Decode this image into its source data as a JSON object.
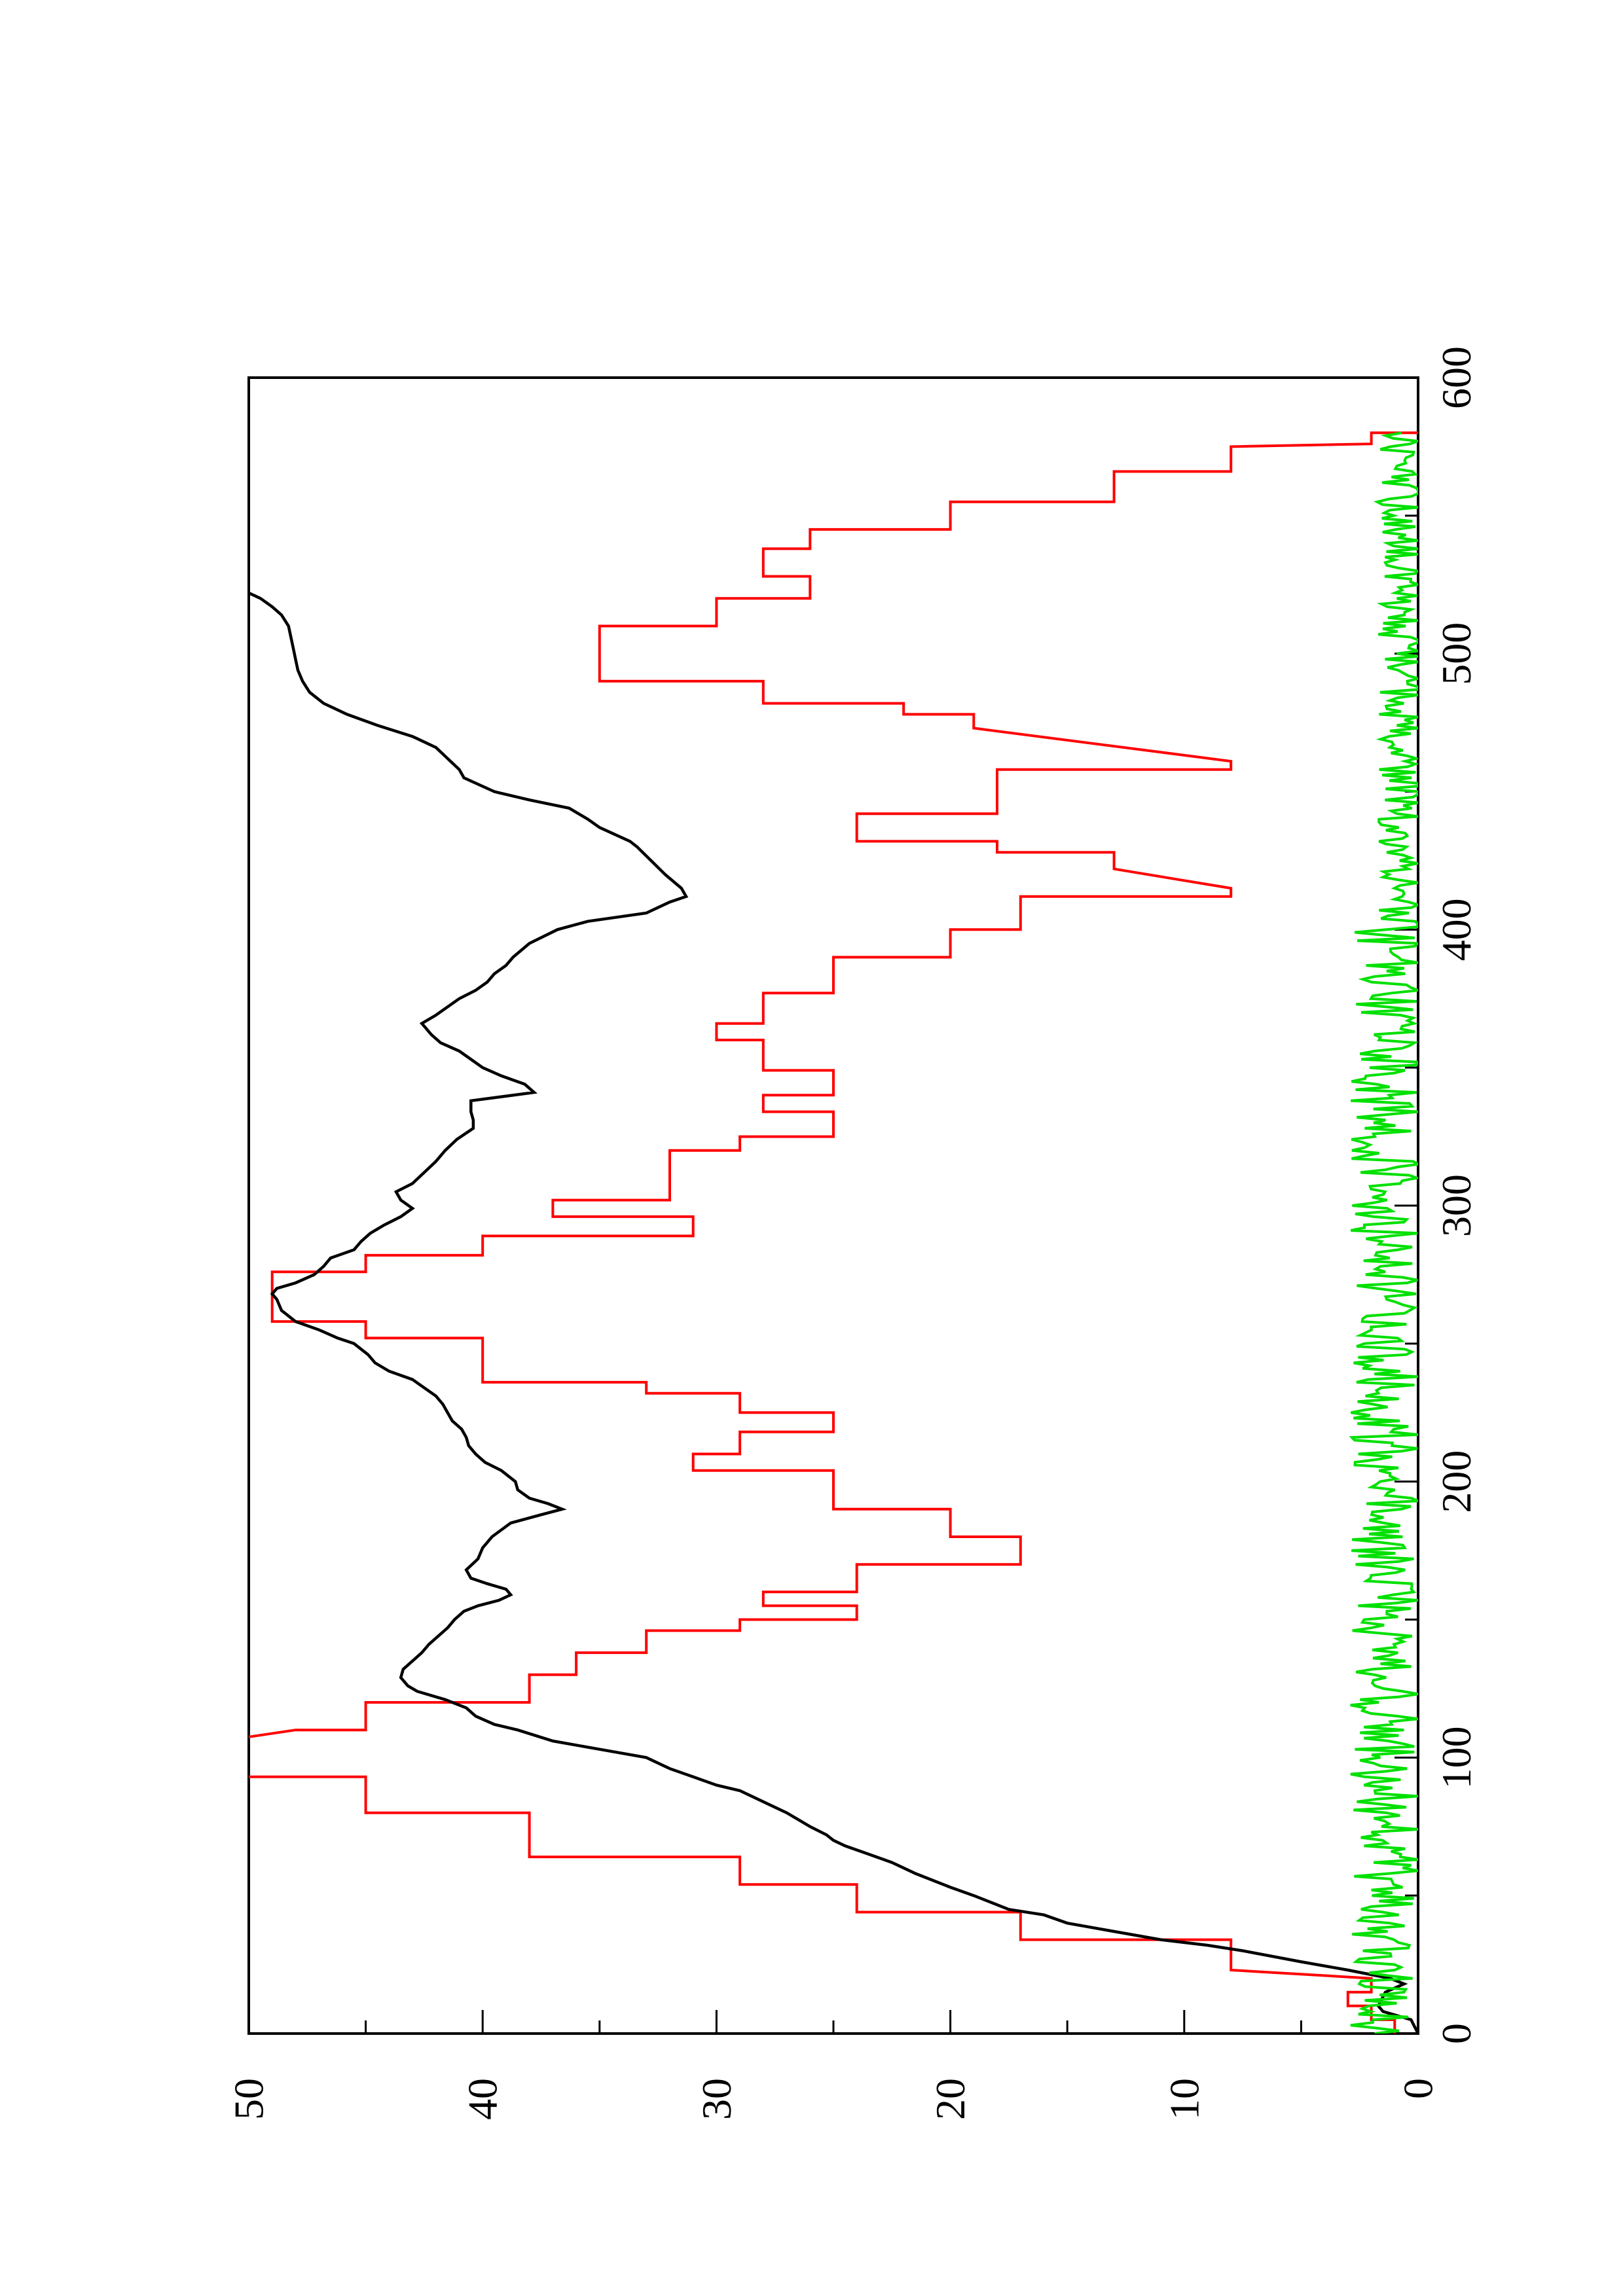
{
  "chart_data": {
    "type": "line",
    "orientation": "rotated-90-ccw",
    "title": "",
    "xlabel": "",
    "ylabel": "",
    "xlim": [
      0,
      600
    ],
    "ylim": [
      0,
      50
    ],
    "x_ticks": [
      0,
      100,
      200,
      300,
      400,
      500,
      600
    ],
    "y_ticks": [
      0,
      10,
      20,
      30,
      40,
      50
    ],
    "x_tick_labels": [
      "0",
      "100",
      "200",
      "300",
      "400",
      "500",
      "600"
    ],
    "y_tick_labels": [
      "0",
      "10",
      "20",
      "30",
      "40",
      "50"
    ],
    "x_minor_ticks": [
      50,
      150,
      250,
      350,
      450,
      550
    ],
    "y_minor_ticks": [
      5,
      15,
      25,
      35,
      45
    ],
    "grid": false,
    "legend": "none",
    "series": [
      {
        "color": "#ff0000",
        "style": "step",
        "points": [
          [
            0,
            1
          ],
          [
            5,
            1
          ],
          [
            5,
            2
          ],
          [
            10,
            2
          ],
          [
            10,
            3
          ],
          [
            15,
            3
          ],
          [
            15,
            2
          ],
          [
            20,
            2
          ],
          [
            23,
            8
          ],
          [
            34,
            8
          ],
          [
            34,
            17
          ],
          [
            44,
            17
          ],
          [
            44,
            24
          ],
          [
            54,
            24
          ],
          [
            54,
            29
          ],
          [
            64,
            29
          ],
          [
            64,
            38
          ],
          [
            80,
            38
          ],
          [
            80,
            45
          ],
          [
            93,
            45
          ],
          [
            93,
            52
          ],
          [
            105,
            52
          ],
          [
            105,
            52
          ],
          [
            110,
            48
          ],
          [
            110,
            45
          ],
          [
            120,
            45
          ],
          [
            120,
            38
          ],
          [
            130,
            38
          ],
          [
            130,
            36
          ],
          [
            138,
            36
          ],
          [
            138,
            33
          ],
          [
            146,
            33
          ],
          [
            146,
            29
          ],
          [
            150,
            29
          ],
          [
            150,
            24
          ],
          [
            155,
            24
          ],
          [
            155,
            28
          ],
          [
            160,
            28
          ],
          [
            160,
            24
          ],
          [
            170,
            24
          ],
          [
            170,
            17
          ],
          [
            180,
            17
          ],
          [
            180,
            20
          ],
          [
            190,
            20
          ],
          [
            190,
            25
          ],
          [
            204,
            25
          ],
          [
            204,
            31
          ],
          [
            210,
            31
          ],
          [
            210,
            29
          ],
          [
            218,
            29
          ],
          [
            218,
            25
          ],
          [
            225,
            25
          ],
          [
            225,
            29
          ],
          [
            232,
            29
          ],
          [
            232,
            33
          ],
          [
            236,
            33
          ],
          [
            236,
            40
          ],
          [
            252,
            40
          ],
          [
            252,
            45
          ],
          [
            258,
            45
          ],
          [
            258,
            49
          ],
          [
            276,
            49
          ],
          [
            276,
            45
          ],
          [
            282,
            45
          ],
          [
            282,
            40
          ],
          [
            289,
            40
          ],
          [
            289,
            31
          ],
          [
            296,
            31
          ],
          [
            296,
            37
          ],
          [
            302,
            37
          ],
          [
            302,
            32
          ],
          [
            320,
            32
          ],
          [
            320,
            29
          ],
          [
            325,
            29
          ],
          [
            325,
            25
          ],
          [
            334,
            25
          ],
          [
            334,
            28
          ],
          [
            340,
            28
          ],
          [
            340,
            25
          ],
          [
            349,
            25
          ],
          [
            349,
            28
          ],
          [
            360,
            28
          ],
          [
            360,
            30
          ],
          [
            366,
            30
          ],
          [
            366,
            28
          ],
          [
            377,
            28
          ],
          [
            377,
            25
          ],
          [
            390,
            25
          ],
          [
            390,
            20
          ],
          [
            400,
            20
          ],
          [
            400,
            17
          ],
          [
            412,
            17
          ],
          [
            412,
            8
          ],
          [
            415,
            8
          ],
          [
            422,
            13
          ],
          [
            428,
            13
          ],
          [
            428,
            18
          ],
          [
            432,
            18
          ],
          [
            432,
            24
          ],
          [
            442,
            24
          ],
          [
            442,
            18
          ],
          [
            458,
            18
          ],
          [
            458,
            8
          ],
          [
            461,
            8
          ],
          [
            473,
            19
          ],
          [
            478,
            19
          ],
          [
            478,
            22
          ],
          [
            482,
            22
          ],
          [
            482,
            28
          ],
          [
            490,
            28
          ],
          [
            490,
            35
          ],
          [
            510,
            35
          ],
          [
            510,
            30
          ],
          [
            520,
            30
          ],
          [
            520,
            26
          ],
          [
            528,
            26
          ],
          [
            528,
            28
          ],
          [
            538,
            28
          ],
          [
            538,
            26
          ],
          [
            545,
            26
          ],
          [
            545,
            20
          ],
          [
            555,
            20
          ],
          [
            555,
            13
          ],
          [
            566,
            13
          ],
          [
            566,
            8
          ],
          [
            575,
            8
          ],
          [
            576,
            2
          ],
          [
            580,
            2
          ],
          [
            580,
            0
          ]
        ]
      },
      {
        "color": "#000000",
        "style": "line",
        "points": [
          [
            0,
            0
          ],
          [
            5,
            0.3
          ],
          [
            8,
            1.5
          ],
          [
            10,
            1.7
          ],
          [
            15,
            1.4
          ],
          [
            18,
            0.6
          ],
          [
            20,
            1.2
          ],
          [
            23,
            3
          ],
          [
            26,
            5
          ],
          [
            30,
            7.5
          ],
          [
            32,
            9
          ],
          [
            34,
            11
          ],
          [
            37,
            13
          ],
          [
            40,
            15
          ],
          [
            43,
            16
          ],
          [
            45,
            17.5
          ],
          [
            50,
            19
          ],
          [
            53,
            20
          ],
          [
            58,
            21.5
          ],
          [
            62,
            22.5
          ],
          [
            65,
            23.5
          ],
          [
            68,
            24.5
          ],
          [
            70,
            25
          ],
          [
            72,
            25.3
          ],
          [
            75,
            26
          ],
          [
            77,
            26.4
          ],
          [
            80,
            27
          ],
          [
            84,
            28
          ],
          [
            88,
            29
          ],
          [
            90,
            30
          ],
          [
            93,
            31
          ],
          [
            96,
            32
          ],
          [
            100,
            33
          ],
          [
            103,
            35
          ],
          [
            106,
            37
          ],
          [
            110,
            38.5
          ],
          [
            112,
            39.5
          ],
          [
            115,
            40.3
          ],
          [
            118,
            40.7
          ],
          [
            121,
            41.6
          ],
          [
            124,
            42.8
          ],
          [
            126,
            43.2
          ],
          [
            129,
            43.5
          ],
          [
            132,
            43.4
          ],
          [
            135,
            43
          ],
          [
            138,
            42.6
          ],
          [
            141,
            42.3
          ],
          [
            144,
            41.9
          ],
          [
            147,
            41.5
          ],
          [
            150,
            41.2
          ],
          [
            153,
            40.8
          ],
          [
            155,
            40.2
          ],
          [
            157,
            39.3
          ],
          [
            159,
            38.8
          ],
          [
            161,
            39
          ],
          [
            163,
            39.8
          ],
          [
            165,
            40.5
          ],
          [
            168,
            40.7
          ],
          [
            172,
            40.2
          ],
          [
            176,
            40
          ],
          [
            180,
            39.6
          ],
          [
            185,
            38.8
          ],
          [
            188,
            37.5
          ],
          [
            190,
            36.6
          ],
          [
            192,
            37.2
          ],
          [
            194,
            38
          ],
          [
            197,
            38.5
          ],
          [
            200,
            38.6
          ],
          [
            204,
            39.2
          ],
          [
            207,
            39.9
          ],
          [
            210,
            40.3
          ],
          [
            213,
            40.6
          ],
          [
            216,
            40.7
          ],
          [
            219,
            40.9
          ],
          [
            222,
            41.3
          ],
          [
            225,
            41.5
          ],
          [
            228,
            41.7
          ],
          [
            231,
            42
          ],
          [
            234,
            42.5
          ],
          [
            237,
            43
          ],
          [
            240,
            44
          ],
          [
            243,
            44.6
          ],
          [
            246,
            44.9
          ],
          [
            248,
            45.2
          ],
          [
            250,
            45.5
          ],
          [
            252,
            46.2
          ],
          [
            255,
            47
          ],
          [
            258,
            48
          ],
          [
            262,
            48.6
          ],
          [
            266,
            48.8
          ],
          [
            268,
            49
          ],
          [
            270,
            48.8
          ],
          [
            272,
            48
          ],
          [
            275,
            47.2
          ],
          [
            278,
            46.8
          ],
          [
            281,
            46.5
          ],
          [
            284,
            45.5
          ],
          [
            287,
            45.2
          ],
          [
            290,
            44.8
          ],
          [
            293,
            44.2
          ],
          [
            296,
            43.5
          ],
          [
            299,
            43
          ],
          [
            302,
            43.5
          ],
          [
            305,
            43.7
          ],
          [
            308,
            43
          ],
          [
            312,
            42.5
          ],
          [
            316,
            42
          ],
          [
            320,
            41.6
          ],
          [
            324,
            41.1
          ],
          [
            328,
            40.4
          ],
          [
            331,
            40.4
          ],
          [
            334,
            40.5
          ],
          [
            338,
            40.5
          ],
          [
            341,
            37.8
          ],
          [
            344,
            38.2
          ],
          [
            347,
            39.2
          ],
          [
            350,
            40
          ],
          [
            353,
            40.5
          ],
          [
            356,
            41
          ],
          [
            359,
            41.8
          ],
          [
            362,
            42.2
          ],
          [
            364,
            42.4
          ],
          [
            366,
            42.6
          ],
          [
            369,
            42
          ],
          [
            372,
            41.5
          ],
          [
            375,
            41
          ],
          [
            378,
            40.3
          ],
          [
            381,
            39.8
          ],
          [
            384,
            39.5
          ],
          [
            387,
            39
          ],
          [
            390,
            38.7
          ],
          [
            395,
            38
          ],
          [
            400,
            36.8
          ],
          [
            403,
            35.5
          ],
          [
            406,
            33
          ],
          [
            410,
            32
          ],
          [
            412,
            31.3
          ],
          [
            415,
            31.5
          ],
          [
            420,
            32.2
          ],
          [
            425,
            32.8
          ],
          [
            430,
            33.4
          ],
          [
            432,
            33.7
          ],
          [
            437,
            35
          ],
          [
            440,
            35.5
          ],
          [
            444,
            36.3
          ],
          [
            447,
            38
          ],
          [
            450,
            39.5
          ],
          [
            455,
            40.8
          ],
          [
            458,
            41
          ],
          [
            462,
            41.5
          ],
          [
            466,
            42
          ],
          [
            470,
            43
          ],
          [
            474,
            44.5
          ],
          [
            478,
            45.8
          ],
          [
            482,
            46.8
          ],
          [
            486,
            47.4
          ],
          [
            490,
            47.7
          ],
          [
            494,
            47.9
          ],
          [
            498,
            48
          ],
          [
            502,
            48.1
          ],
          [
            506,
            48.2
          ],
          [
            510,
            48.3
          ],
          [
            514,
            48.6
          ],
          [
            517,
            49
          ],
          [
            520,
            49.5
          ],
          [
            522,
            50
          ],
          [
            525,
            50.2
          ],
          [
            528,
            50.3
          ],
          [
            531,
            50.3
          ],
          [
            534,
            50.4
          ],
          [
            537,
            50.6
          ],
          [
            540,
            50.9
          ],
          [
            544,
            51.2
          ],
          [
            548,
            51.5
          ],
          [
            552,
            52
          ],
          [
            556,
            52.5
          ],
          [
            559,
            53.3
          ],
          [
            562,
            53.9
          ],
          [
            565,
            54.2
          ],
          [
            568,
            54.3
          ],
          [
            572,
            54.5
          ],
          [
            575,
            54.6
          ],
          [
            578,
            54.8
          ]
        ]
      },
      {
        "color": "#00e000",
        "style": "line",
        "points": []
      }
    ]
  }
}
